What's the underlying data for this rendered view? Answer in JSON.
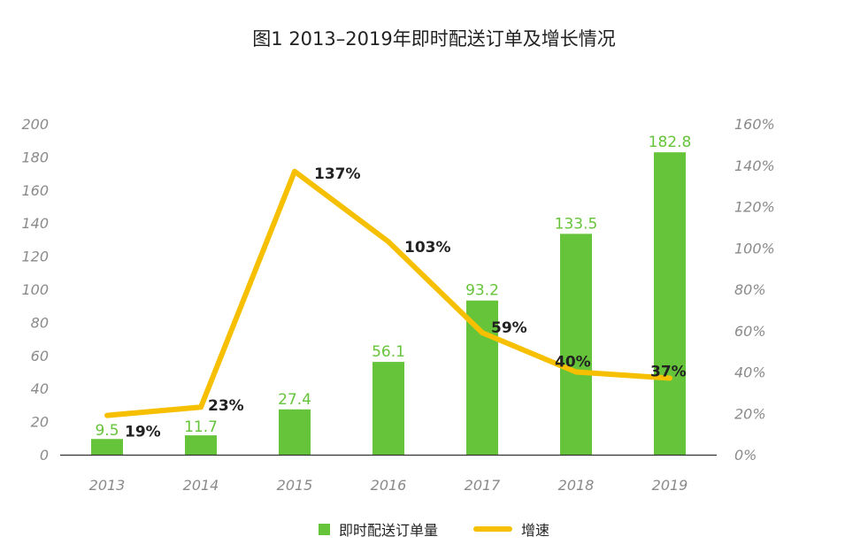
{
  "title": "图1 2013–2019年即时配送订单及增长情况",
  "colors": {
    "bar": "#66c43a",
    "line": "#f6c000",
    "axis": "#333333",
    "tick": "#8a8a8a"
  },
  "legend": {
    "bar_label": "即时配送订单量",
    "line_label": "增速"
  },
  "chart_data": {
    "type": "bar",
    "title": "图1 2013–2019年即时配送订单及增长情况",
    "categories": [
      "2013",
      "2014",
      "2015",
      "2016",
      "2017",
      "2018",
      "2019"
    ],
    "series": [
      {
        "name": "即时配送订单量",
        "type": "bar",
        "axis": "left",
        "values": [
          9.5,
          11.7,
          27.4,
          56.1,
          93.2,
          133.5,
          182.8
        ],
        "labels": [
          "9.5",
          "11.7",
          "27.4",
          "56.1",
          "93.2",
          "133.5",
          "182.8"
        ]
      },
      {
        "name": "增速",
        "type": "line",
        "axis": "right",
        "values": [
          19,
          23,
          137,
          103,
          59,
          40,
          37
        ],
        "labels": [
          "19%",
          "23%",
          "137%",
          "103%",
          "59%",
          "40%",
          "37%"
        ]
      }
    ],
    "y_left": {
      "min": 0,
      "max": 200,
      "ticks": [
        "0",
        "20",
        "40",
        "60",
        "80",
        "100",
        "120",
        "140",
        "160",
        "180",
        "200"
      ]
    },
    "y_right": {
      "min": 0,
      "max": 160,
      "ticks": [
        "0%",
        "20%",
        "40%",
        "60%",
        "80%",
        "100%",
        "120%",
        "140%",
        "160%"
      ]
    },
    "legend_position": "bottom",
    "grid": false
  }
}
